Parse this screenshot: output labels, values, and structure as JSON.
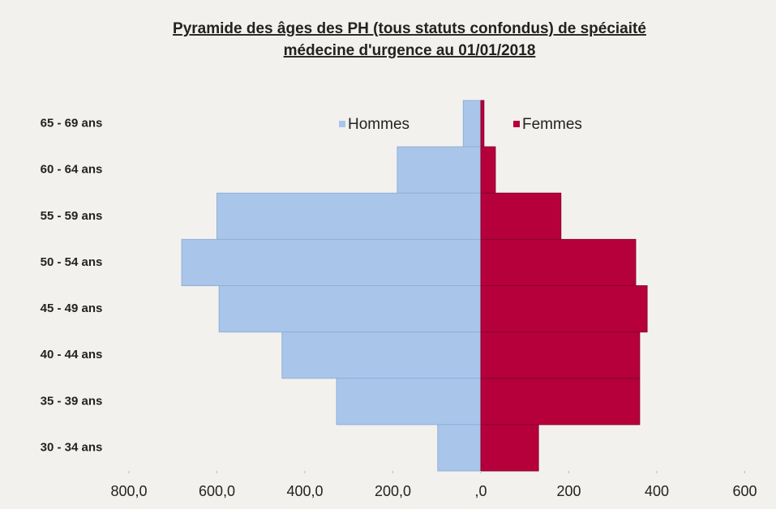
{
  "chart_data": {
    "type": "pyramid",
    "title_lines": [
      "Pyramide des âges des PH (tous statuts confondus) de spéciaité",
      "médecine d'urgence au 01/01/2018"
    ],
    "categories": [
      "65 - 69 ans",
      "60 - 64 ans",
      "55 - 59 ans",
      "50 - 54 ans",
      "45 - 49 ans",
      "40 - 44 ans",
      "35 - 39 ans",
      "30 - 34 ans"
    ],
    "series": [
      {
        "name": "Hommes",
        "color": "#a9c6ea",
        "values": [
          -40,
          -190,
          -600,
          -680,
          -595,
          -452,
          -328,
          -98
        ]
      },
      {
        "name": "Femmes",
        "color": "#b5003c",
        "values": [
          7,
          33,
          182,
          352,
          378,
          361,
          361,
          131
        ]
      }
    ],
    "xlim": [
      -800,
      600
    ],
    "xticks": [
      {
        "value": -800,
        "label": "800,0"
      },
      {
        "value": -600,
        "label": "600,0"
      },
      {
        "value": -400,
        "label": "400,0"
      },
      {
        "value": -200,
        "label": "200,0"
      },
      {
        "value": 0,
        "label": ",0"
      },
      200,
      400,
      600
    ],
    "legend": "top"
  }
}
